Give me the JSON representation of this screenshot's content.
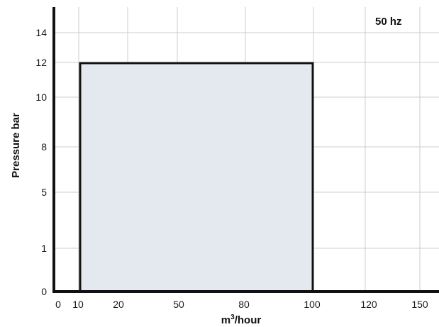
{
  "chart_data": {
    "type": "area",
    "annotation": "50 hz",
    "xlabel": "m³/hour",
    "xlabel_base": "m",
    "xlabel_sup": "3",
    "xlabel_rest": "/hour",
    "ylabel": "Pressure bar",
    "x_ticks": [
      "0",
      "10",
      "20",
      "50",
      "80",
      "100",
      "120",
      "150"
    ],
    "y_ticks": [
      "0",
      "1",
      "5",
      "8",
      "10",
      "12",
      "14"
    ],
    "region": {
      "x_min": 10,
      "x_max": 100,
      "y_min": 0,
      "y_max": 12
    },
    "grid": true,
    "colors": {
      "fill": "#e3e9ef",
      "outline": "#111111",
      "grid": "#cccccc",
      "axis": "#111111"
    }
  }
}
